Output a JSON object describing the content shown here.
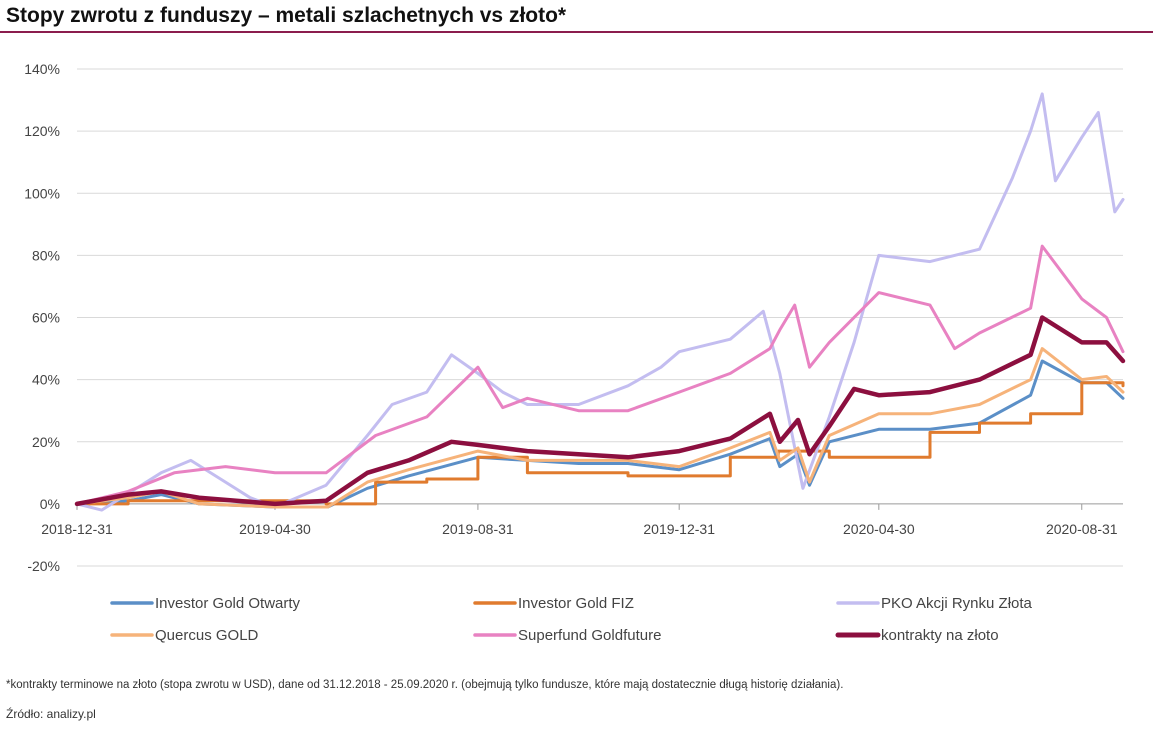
{
  "header": {
    "title": "Stopy zwrotu z funduszy – metali szlachetnych vs złoto*"
  },
  "footer": {
    "note": "*kontrakty terminowe na złoto (stopa zwrotu w USD), dane od 31.12.2018 - 25.09.2020 r. (obejmują tylko fundusze, które mają dostatecznie długą historię działania).",
    "source": "Źródło: analizy.pl"
  },
  "chart_data": {
    "type": "line",
    "title": "Stopy zwrotu z funduszy – metali szlachetnych vs złoto*",
    "xlabel": "",
    "ylabel": "",
    "x_range": [
      "2018-12-31",
      "2020-09-25"
    ],
    "x_ticks": [
      "2018-12-31",
      "2019-04-30",
      "2019-08-31",
      "2019-12-31",
      "2020-04-30",
      "2020-08-31"
    ],
    "ylim": [
      -20,
      140
    ],
    "y_ticks": [
      -20,
      0,
      20,
      40,
      60,
      80,
      100,
      120,
      140
    ],
    "y_tick_labels": [
      "-20%",
      "0%",
      "20%",
      "40%",
      "60%",
      "80%",
      "100%",
      "120%",
      "140%"
    ],
    "grid": "horizontal",
    "legend_position": "bottom",
    "series": [
      {
        "name": "Investor Gold Otwarty",
        "color": "#5b8fc7",
        "points": [
          [
            "2018-12-31",
            0
          ],
          [
            "2019-01-31",
            1
          ],
          [
            "2019-02-20",
            3
          ],
          [
            "2019-03-15",
            0
          ],
          [
            "2019-04-30",
            -1
          ],
          [
            "2019-06-01",
            -1
          ],
          [
            "2019-06-25",
            5
          ],
          [
            "2019-07-20",
            9
          ],
          [
            "2019-08-31",
            15
          ],
          [
            "2019-09-30",
            14
          ],
          [
            "2019-10-31",
            13
          ],
          [
            "2019-11-30",
            13
          ],
          [
            "2019-12-31",
            11
          ],
          [
            "2020-01-31",
            16
          ],
          [
            "2020-02-24",
            21
          ],
          [
            "2020-03-01",
            12
          ],
          [
            "2020-03-12",
            16
          ],
          [
            "2020-03-19",
            6
          ],
          [
            "2020-03-31",
            20
          ],
          [
            "2020-04-30",
            24
          ],
          [
            "2020-05-31",
            24
          ],
          [
            "2020-06-30",
            26
          ],
          [
            "2020-07-31",
            35
          ],
          [
            "2020-08-07",
            46
          ],
          [
            "2020-08-31",
            39
          ],
          [
            "2020-09-15",
            39
          ],
          [
            "2020-09-25",
            34
          ]
        ]
      },
      {
        "name": "Investor Gold FIZ",
        "color": "#e07b2e",
        "points": [
          [
            "2018-12-31",
            0
          ],
          [
            "2019-01-31",
            1
          ],
          [
            "2019-03-31",
            1
          ],
          [
            "2019-05-31",
            0
          ],
          [
            "2019-06-30",
            7
          ],
          [
            "2019-07-31",
            8
          ],
          [
            "2019-08-31",
            15
          ],
          [
            "2019-09-30",
            10
          ],
          [
            "2019-10-31",
            10
          ],
          [
            "2019-11-30",
            9
          ],
          [
            "2019-12-31",
            9
          ],
          [
            "2020-01-31",
            15
          ],
          [
            "2020-02-29",
            17
          ],
          [
            "2020-03-31",
            15
          ],
          [
            "2020-04-30",
            15
          ],
          [
            "2020-05-31",
            23
          ],
          [
            "2020-06-30",
            26
          ],
          [
            "2020-07-31",
            29
          ],
          [
            "2020-08-31",
            39
          ],
          [
            "2020-09-25",
            38
          ]
        ]
      },
      {
        "name": "PKO Akcji Rynku Złota",
        "color": "#c3bdf0",
        "points": [
          [
            "2018-12-31",
            0
          ],
          [
            "2019-01-15",
            -2
          ],
          [
            "2019-02-20",
            10
          ],
          [
            "2019-03-10",
            14
          ],
          [
            "2019-03-31",
            7
          ],
          [
            "2019-04-15",
            2
          ],
          [
            "2019-04-30",
            -1
          ],
          [
            "2019-05-31",
            6
          ],
          [
            "2019-06-25",
            22
          ],
          [
            "2019-07-10",
            32
          ],
          [
            "2019-07-31",
            36
          ],
          [
            "2019-08-15",
            48
          ],
          [
            "2019-08-31",
            42
          ],
          [
            "2019-09-15",
            36
          ],
          [
            "2019-09-30",
            32
          ],
          [
            "2019-10-31",
            32
          ],
          [
            "2019-11-30",
            38
          ],
          [
            "2019-12-20",
            44
          ],
          [
            "2019-12-31",
            49
          ],
          [
            "2020-01-31",
            53
          ],
          [
            "2020-02-20",
            62
          ],
          [
            "2020-03-01",
            42
          ],
          [
            "2020-03-15",
            5
          ],
          [
            "2020-03-31",
            28
          ],
          [
            "2020-04-15",
            52
          ],
          [
            "2020-04-30",
            80
          ],
          [
            "2020-05-31",
            78
          ],
          [
            "2020-06-30",
            82
          ],
          [
            "2020-07-20",
            105
          ],
          [
            "2020-07-31",
            120
          ],
          [
            "2020-08-07",
            132
          ],
          [
            "2020-08-15",
            104
          ],
          [
            "2020-08-31",
            118
          ],
          [
            "2020-09-10",
            126
          ],
          [
            "2020-09-20",
            94
          ],
          [
            "2020-09-25",
            98
          ]
        ]
      },
      {
        "name": "Quercus GOLD",
        "color": "#f6b37a",
        "points": [
          [
            "2018-12-31",
            0
          ],
          [
            "2019-01-31",
            2
          ],
          [
            "2019-02-20",
            4
          ],
          [
            "2019-03-15",
            0
          ],
          [
            "2019-04-30",
            -1
          ],
          [
            "2019-06-01",
            -1
          ],
          [
            "2019-06-25",
            7
          ],
          [
            "2019-07-20",
            11
          ],
          [
            "2019-08-31",
            17
          ],
          [
            "2019-09-30",
            14
          ],
          [
            "2019-10-31",
            14
          ],
          [
            "2019-11-30",
            14
          ],
          [
            "2019-12-31",
            12
          ],
          [
            "2020-01-31",
            18
          ],
          [
            "2020-02-24",
            23
          ],
          [
            "2020-03-01",
            14
          ],
          [
            "2020-03-12",
            18
          ],
          [
            "2020-03-19",
            7
          ],
          [
            "2020-03-31",
            22
          ],
          [
            "2020-04-30",
            29
          ],
          [
            "2020-05-31",
            29
          ],
          [
            "2020-06-30",
            32
          ],
          [
            "2020-07-31",
            40
          ],
          [
            "2020-08-07",
            50
          ],
          [
            "2020-08-31",
            40
          ],
          [
            "2020-09-15",
            41
          ],
          [
            "2020-09-25",
            36
          ]
        ]
      },
      {
        "name": "Superfund Goldfuture",
        "color": "#e882c2",
        "points": [
          [
            "2018-12-31",
            0
          ],
          [
            "2019-01-31",
            4
          ],
          [
            "2019-02-28",
            10
          ],
          [
            "2019-03-31",
            12
          ],
          [
            "2019-04-30",
            10
          ],
          [
            "2019-05-31",
            10
          ],
          [
            "2019-06-30",
            22
          ],
          [
            "2019-07-31",
            28
          ],
          [
            "2019-08-31",
            44
          ],
          [
            "2019-09-15",
            31
          ],
          [
            "2019-09-30",
            34
          ],
          [
            "2019-10-31",
            30
          ],
          [
            "2019-11-30",
            30
          ],
          [
            "2019-12-31",
            36
          ],
          [
            "2020-01-31",
            42
          ],
          [
            "2020-02-24",
            50
          ],
          [
            "2020-03-01",
            56
          ],
          [
            "2020-03-10",
            64
          ],
          [
            "2020-03-19",
            44
          ],
          [
            "2020-03-31",
            52
          ],
          [
            "2020-04-30",
            68
          ],
          [
            "2020-05-31",
            64
          ],
          [
            "2020-06-15",
            50
          ],
          [
            "2020-06-30",
            55
          ],
          [
            "2020-07-31",
            63
          ],
          [
            "2020-08-07",
            83
          ],
          [
            "2020-08-31",
            66
          ],
          [
            "2020-09-15",
            60
          ],
          [
            "2020-09-25",
            49
          ]
        ]
      },
      {
        "name": "kontrakty na złoto",
        "color": "#8c0f3f",
        "points": [
          [
            "2018-12-31",
            0
          ],
          [
            "2019-01-31",
            3
          ],
          [
            "2019-02-20",
            4
          ],
          [
            "2019-03-15",
            2
          ],
          [
            "2019-04-30",
            0
          ],
          [
            "2019-05-31",
            1
          ],
          [
            "2019-06-25",
            10
          ],
          [
            "2019-07-20",
            14
          ],
          [
            "2019-08-15",
            20
          ],
          [
            "2019-08-31",
            19
          ],
          [
            "2019-09-30",
            17
          ],
          [
            "2019-10-31",
            16
          ],
          [
            "2019-11-30",
            15
          ],
          [
            "2019-12-31",
            17
          ],
          [
            "2020-01-31",
            21
          ],
          [
            "2020-02-24",
            29
          ],
          [
            "2020-03-01",
            20
          ],
          [
            "2020-03-12",
            27
          ],
          [
            "2020-03-19",
            16
          ],
          [
            "2020-03-31",
            25
          ],
          [
            "2020-04-15",
            37
          ],
          [
            "2020-04-30",
            35
          ],
          [
            "2020-05-31",
            36
          ],
          [
            "2020-06-30",
            40
          ],
          [
            "2020-07-31",
            48
          ],
          [
            "2020-08-07",
            60
          ],
          [
            "2020-08-31",
            52
          ],
          [
            "2020-09-15",
            52
          ],
          [
            "2020-09-25",
            46
          ]
        ]
      }
    ]
  }
}
